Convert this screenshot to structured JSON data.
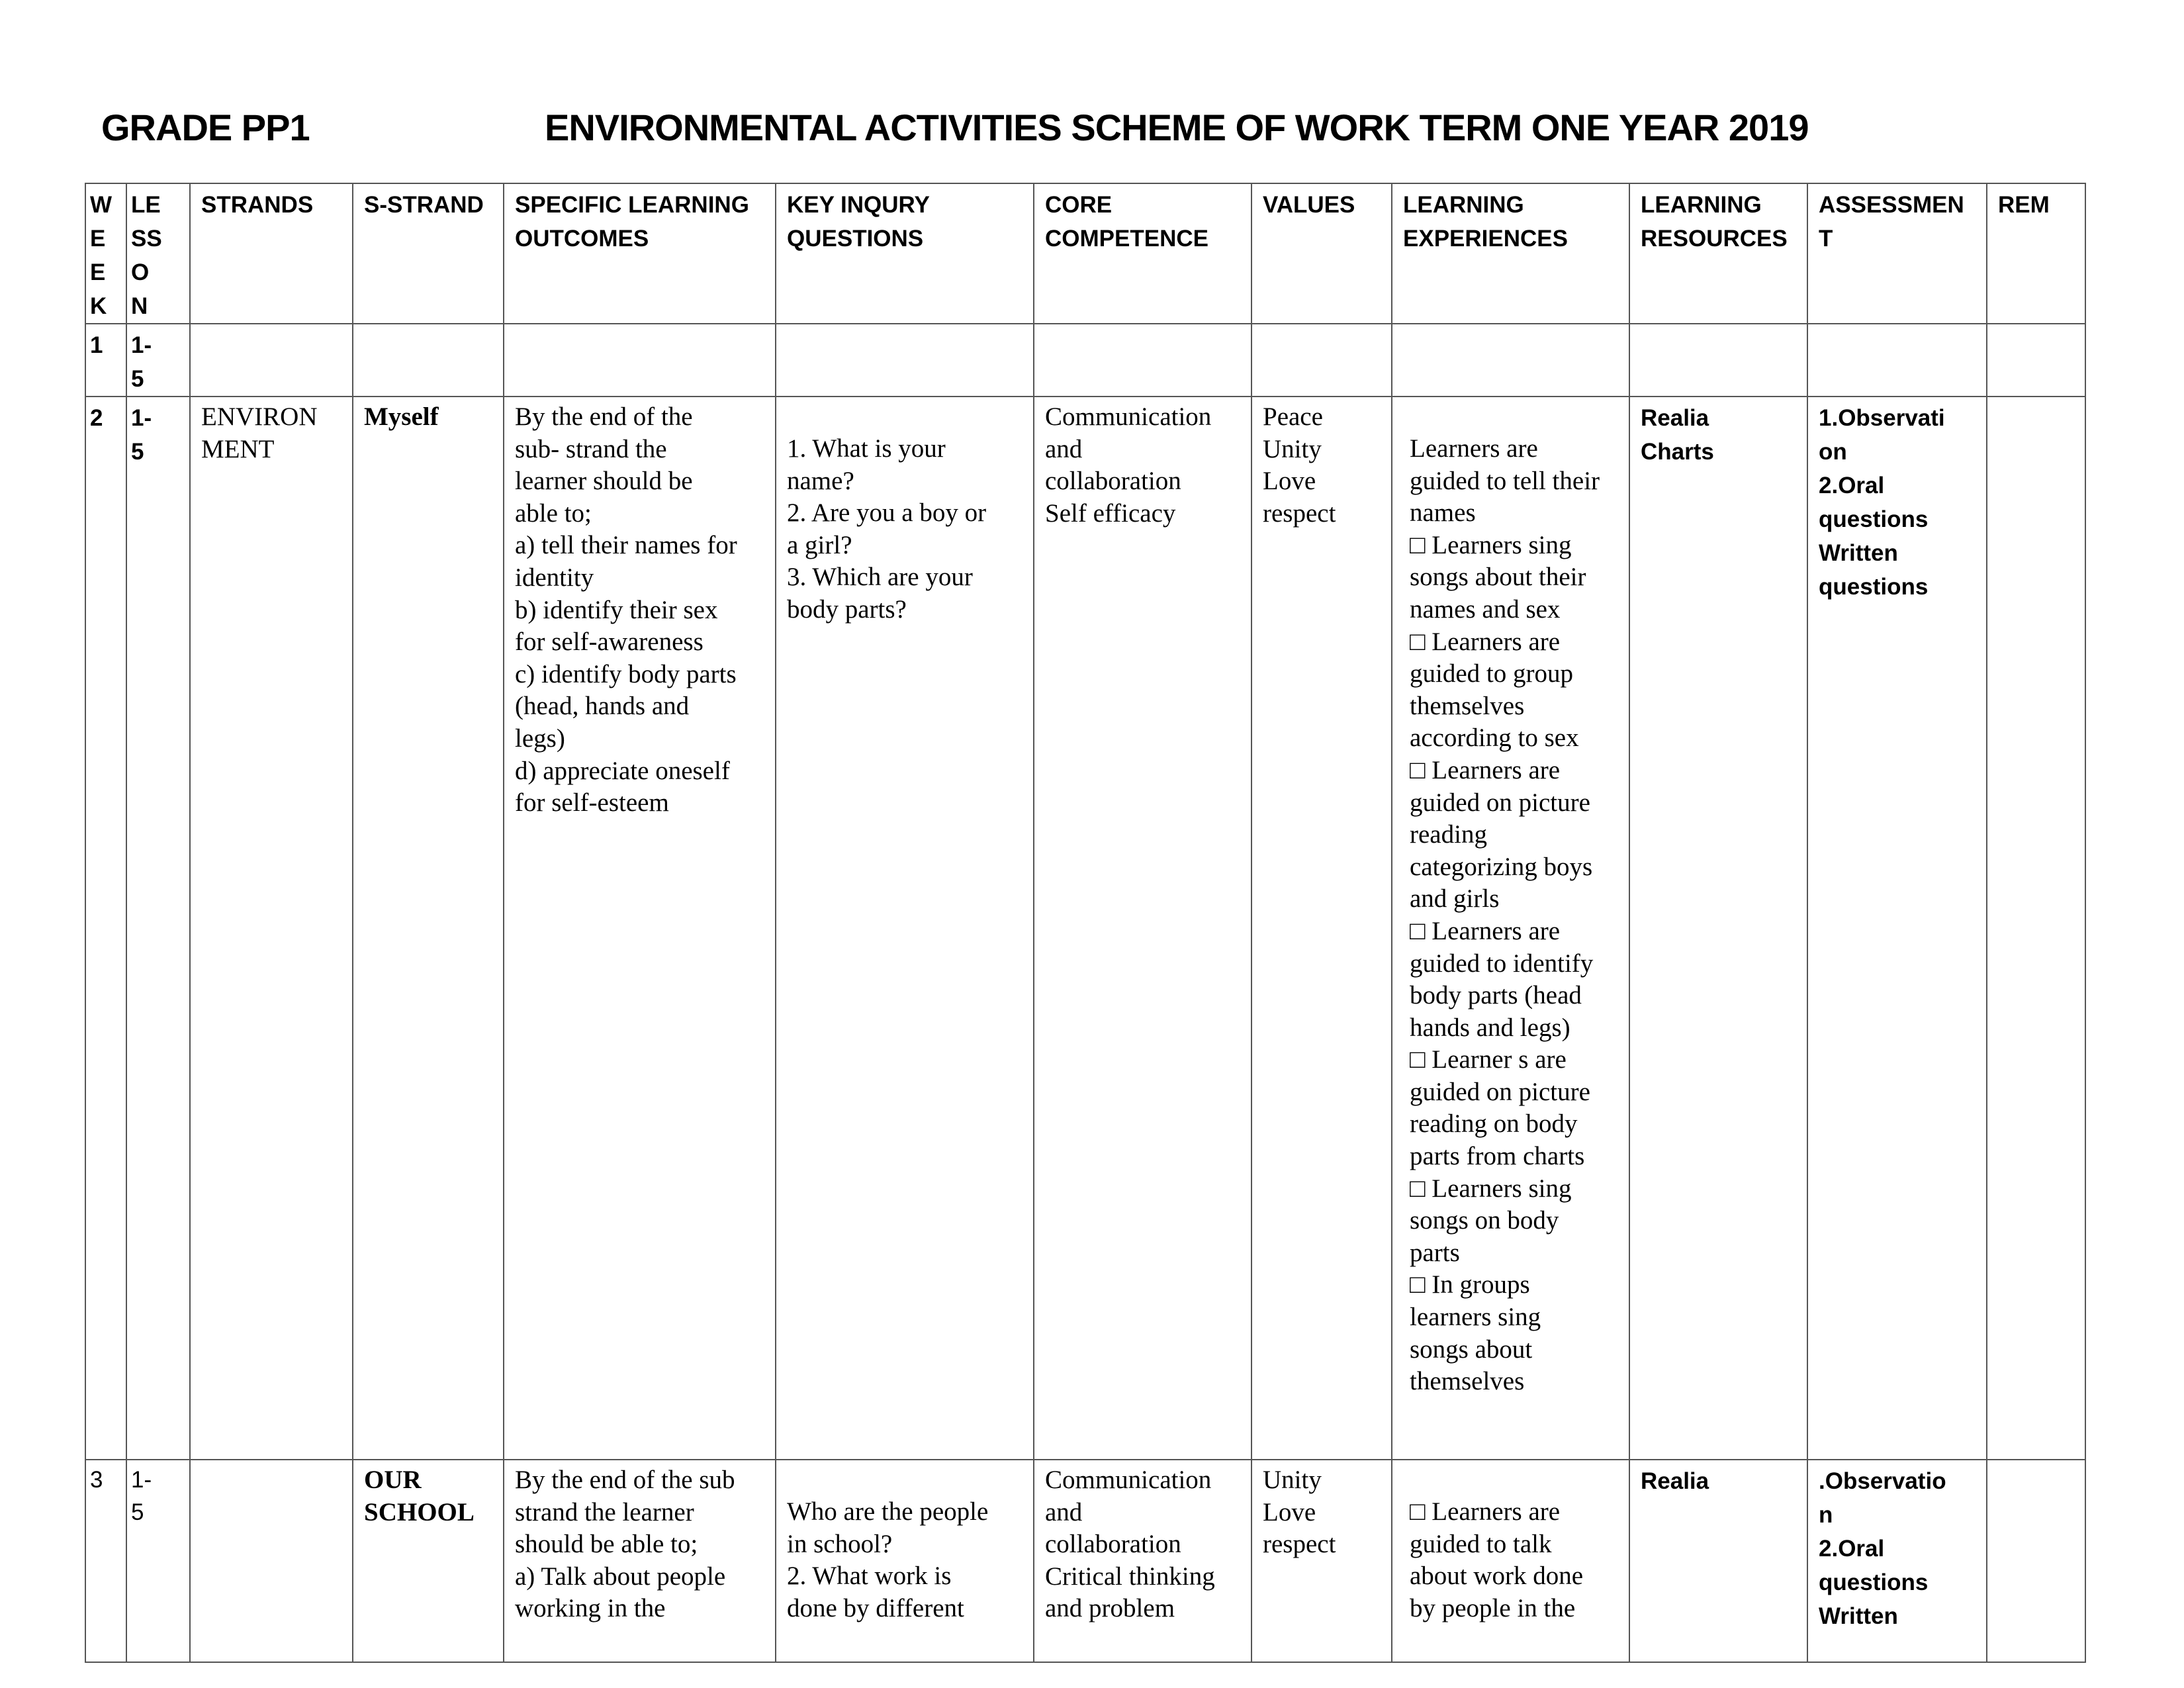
{
  "header": {
    "grade": "GRADE PP1",
    "title": "ENVIRONMENTAL ACTIVITIES SCHEME OF WORK TERM ONE YEAR 2019"
  },
  "table": {
    "columns": [
      "W\nE\nE\nK",
      "LE\nSS\nO\nN",
      "STRANDS",
      "S-STRAND",
      "SPECIFIC LEARNING OUTCOMES",
      "KEY INQURY QUESTIONS",
      "CORE COMPETENCE",
      "VALUES",
      "LEARNING EXPERIENCES",
      "LEARNING RESOURCES",
      "ASSESSMEN\nT",
      "REM"
    ],
    "rows": [
      {
        "week": "1",
        "lesson": "1-\n5",
        "strand": "",
        "sub_strand": "",
        "outcomes": "",
        "questions": "",
        "competence": "",
        "values": "",
        "experiences": "",
        "resources": "",
        "assessment": "",
        "remarks": ""
      },
      {
        "week": "2",
        "lesson": "1-\n5",
        "strand": "ENVIRON\nMENT",
        "sub_strand": "Myself",
        "outcomes": "By the end of the\nsub- strand the\nlearner should be\nable to;\na) tell their names for\nidentity\nb) identify their sex\nfor self-awareness\nc) identify body parts\n(head, hands and\nlegs)\nd) appreciate oneself\nfor self-esteem",
        "questions": "1. What is your\nname?\n2. Are you a boy or\na girl?\n3. Which are your\nbody parts?",
        "competence": "Communication\nand\ncollaboration\nSelf efficacy",
        "values": "Peace\nUnity\nLove\nrespect",
        "experiences": "Learners are\nguided to tell their\nnames\n□ Learners sing\nsongs about their\nnames and sex\n□ Learners are\nguided to group\nthemselves\naccording to sex\n□ Learners are\nguided on picture\nreading\ncategorizing boys\nand girls\n□ Learners are\nguided to identify\nbody parts (head\nhands and legs)\n□ Learner s are\nguided on picture\nreading on body\nparts from charts\n□ Learners sing\nsongs on body\nparts\n□ In groups\nlearners sing\nsongs about\nthemselves",
        "resources": "Realia\nCharts",
        "assessment": "1.Observati\non\n2.Oral\nquestions\nWritten\nquestions",
        "remarks": ""
      },
      {
        "week": "3",
        "lesson": "1-\n5",
        "strand": "",
        "sub_strand": "OUR\nSCHOOL",
        "outcomes": "By the end of the sub\nstrand the learner\nshould be able to;\na) Talk about people\nworking in the",
        "questions": "Who are the people\nin school?\n2. What work is\ndone by different",
        "competence": "Communication\nand\ncollaboration\nCritical thinking\nand problem",
        "values": "Unity\nLove\nrespect",
        "experiences": "□  Learners are\nguided to talk\nabout work done\nby people in the",
        "resources": "Realia",
        "assessment": ".Observatio\nn\n2.Oral\nquestions\nWritten",
        "remarks": ""
      }
    ]
  }
}
